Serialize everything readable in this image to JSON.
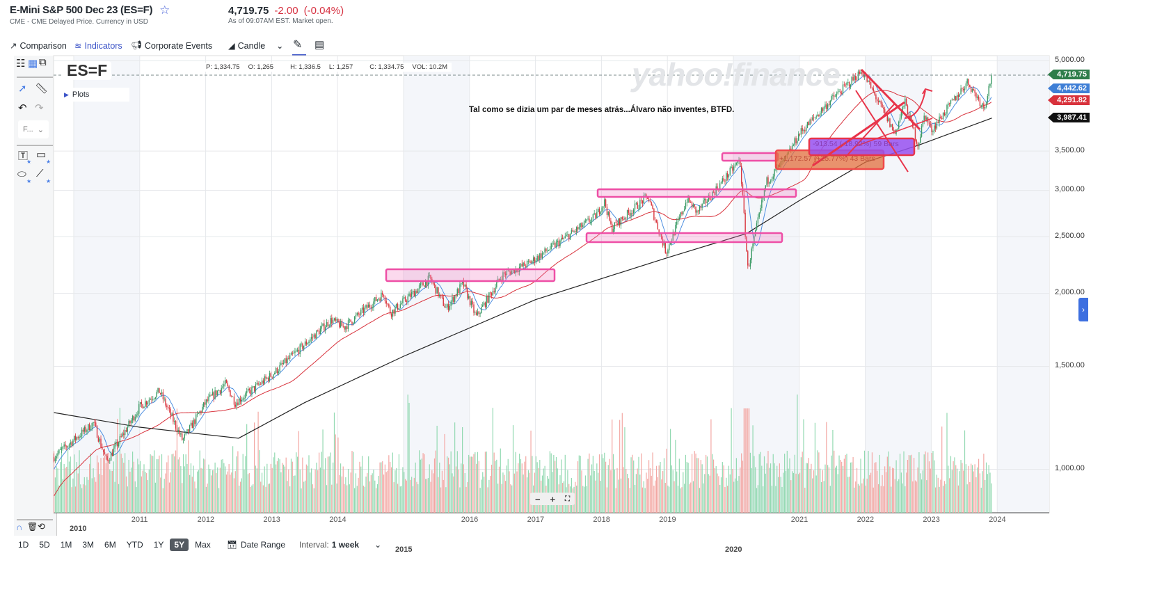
{
  "header": {
    "title": "E-Mini S&P 500 Dec 23 (ES=F)",
    "subtitle": "CME - CME Delayed Price. Currency in USD",
    "price": "4,719.75",
    "change": "-2.00",
    "change_pct": "(-0.04%)",
    "as_of": "As of 09:07AM EST. Market open."
  },
  "toolbar": {
    "comparison": "Comparison",
    "indicators": "Indicators",
    "corporate_events": "Corporate Events",
    "chart_type": "Candle"
  },
  "left_toolbar": {
    "font_select": "F..."
  },
  "chart": {
    "ticker": "ES=F",
    "ohlc": {
      "p": "P: 1,334.75",
      "o": "O: 1,265",
      "h": "H: 1,336.5",
      "l": "L: 1,257",
      "c": "C: 1,334.75",
      "vol": "VOL: 10.2M"
    },
    "plots_label": "Plots",
    "watermark": "yahoo!finance",
    "note": "Tal como se dizia um par de meses atrás...Álvaro não inventes, BTFD.",
    "y_labels": [
      "5,000.00",
      "3,500.00",
      "3,000.00",
      "2,500.00",
      "2,000.00",
      "1,500.00",
      "1,000.00"
    ],
    "y_values": [
      5000,
      3500,
      3000,
      2500,
      2000,
      1500,
      1000
    ],
    "x_labels": [
      "2010",
      "2011",
      "2012",
      "2013",
      "2014",
      "2015",
      "2016",
      "2017",
      "2018",
      "2019",
      "2020",
      "2021",
      "2022",
      "2023",
      "2024"
    ],
    "price_tags": [
      {
        "label": "4,719.75",
        "color": "#2f7d4a"
      },
      {
        "label": "4,442.62",
        "color": "#3f7fd6"
      },
      {
        "label": "4,291.82",
        "color": "#d8323c"
      },
      {
        "label": "3,987.41",
        "color": "#111111"
      }
    ],
    "drawings": {
      "measure_orange": "+1,172.57 (+25.77%) 43 Bars",
      "measure_purple": "-913.54 (-18.92%) 59 Bars"
    },
    "colors": {
      "up": "#3a9a65",
      "down": "#d9363e",
      "vol_up": "#92d9b1",
      "vol_down": "#f3a7a3",
      "ma_fast": "#4d8fe0",
      "ma_mid": "#d8323c",
      "ma_slow": "#222222"
    }
  },
  "chart_data": {
    "type": "candlestick",
    "interval": "1 week",
    "scale": "log",
    "ylim": [
      880,
      5000
    ],
    "xlim": [
      2009.7,
      2024.8
    ],
    "last_close": 4719.75,
    "price_path": [
      [
        2009.7,
        1050
      ],
      [
        2010.3,
        1200
      ],
      [
        2010.5,
        1030
      ],
      [
        2011.0,
        1280
      ],
      [
        2011.3,
        1360
      ],
      [
        2011.65,
        1120
      ],
      [
        2012.0,
        1300
      ],
      [
        2012.3,
        1400
      ],
      [
        2012.45,
        1300
      ],
      [
        2013.0,
        1450
      ],
      [
        2013.9,
        1800
      ],
      [
        2014.1,
        1750
      ],
      [
        2014.7,
        2000
      ],
      [
        2014.8,
        1850
      ],
      [
        2015.4,
        2120
      ],
      [
        2015.65,
        1880
      ],
      [
        2015.9,
        2080
      ],
      [
        2016.1,
        1820
      ],
      [
        2016.5,
        2150
      ],
      [
        2016.9,
        2250
      ],
      [
        2017.9,
        2700
      ],
      [
        2018.05,
        2870
      ],
      [
        2018.15,
        2580
      ],
      [
        2018.7,
        2930
      ],
      [
        2018.98,
        2350
      ],
      [
        2019.3,
        2900
      ],
      [
        2019.45,
        2750
      ],
      [
        2020.1,
        3380
      ],
      [
        2020.22,
        2200
      ],
      [
        2020.5,
        3100
      ],
      [
        2020.8,
        3400
      ],
      [
        2021.0,
        3750
      ],
      [
        2021.5,
        4300
      ],
      [
        2021.95,
        4800
      ],
      [
        2022.45,
        3750
      ],
      [
        2022.6,
        4250
      ],
      [
        2022.8,
        3580
      ],
      [
        2022.9,
        4050
      ],
      [
        2023.0,
        3800
      ],
      [
        2023.55,
        4600
      ],
      [
        2023.8,
        4150
      ],
      [
        2023.92,
        4720
      ]
    ],
    "ma_slow_path": [
      [
        2009.7,
        1250
      ],
      [
        2011.0,
        1180
      ],
      [
        2012.5,
        1130
      ],
      [
        2013.5,
        1300
      ],
      [
        2015.0,
        1560
      ],
      [
        2017.0,
        1950
      ],
      [
        2019.0,
        2300
      ],
      [
        2020.2,
        2530
      ],
      [
        2021.0,
        2880
      ],
      [
        2022.0,
        3350
      ],
      [
        2022.8,
        3580
      ],
      [
        2023.92,
        3987
      ]
    ]
  },
  "bottom_bar": {
    "ranges": [
      "1D",
      "5D",
      "1M",
      "3M",
      "6M",
      "YTD",
      "1Y",
      "5Y",
      "Max"
    ],
    "selected": "5Y",
    "date_range": "Date Range",
    "interval_label": "Interval:",
    "interval_value": "1 week"
  }
}
